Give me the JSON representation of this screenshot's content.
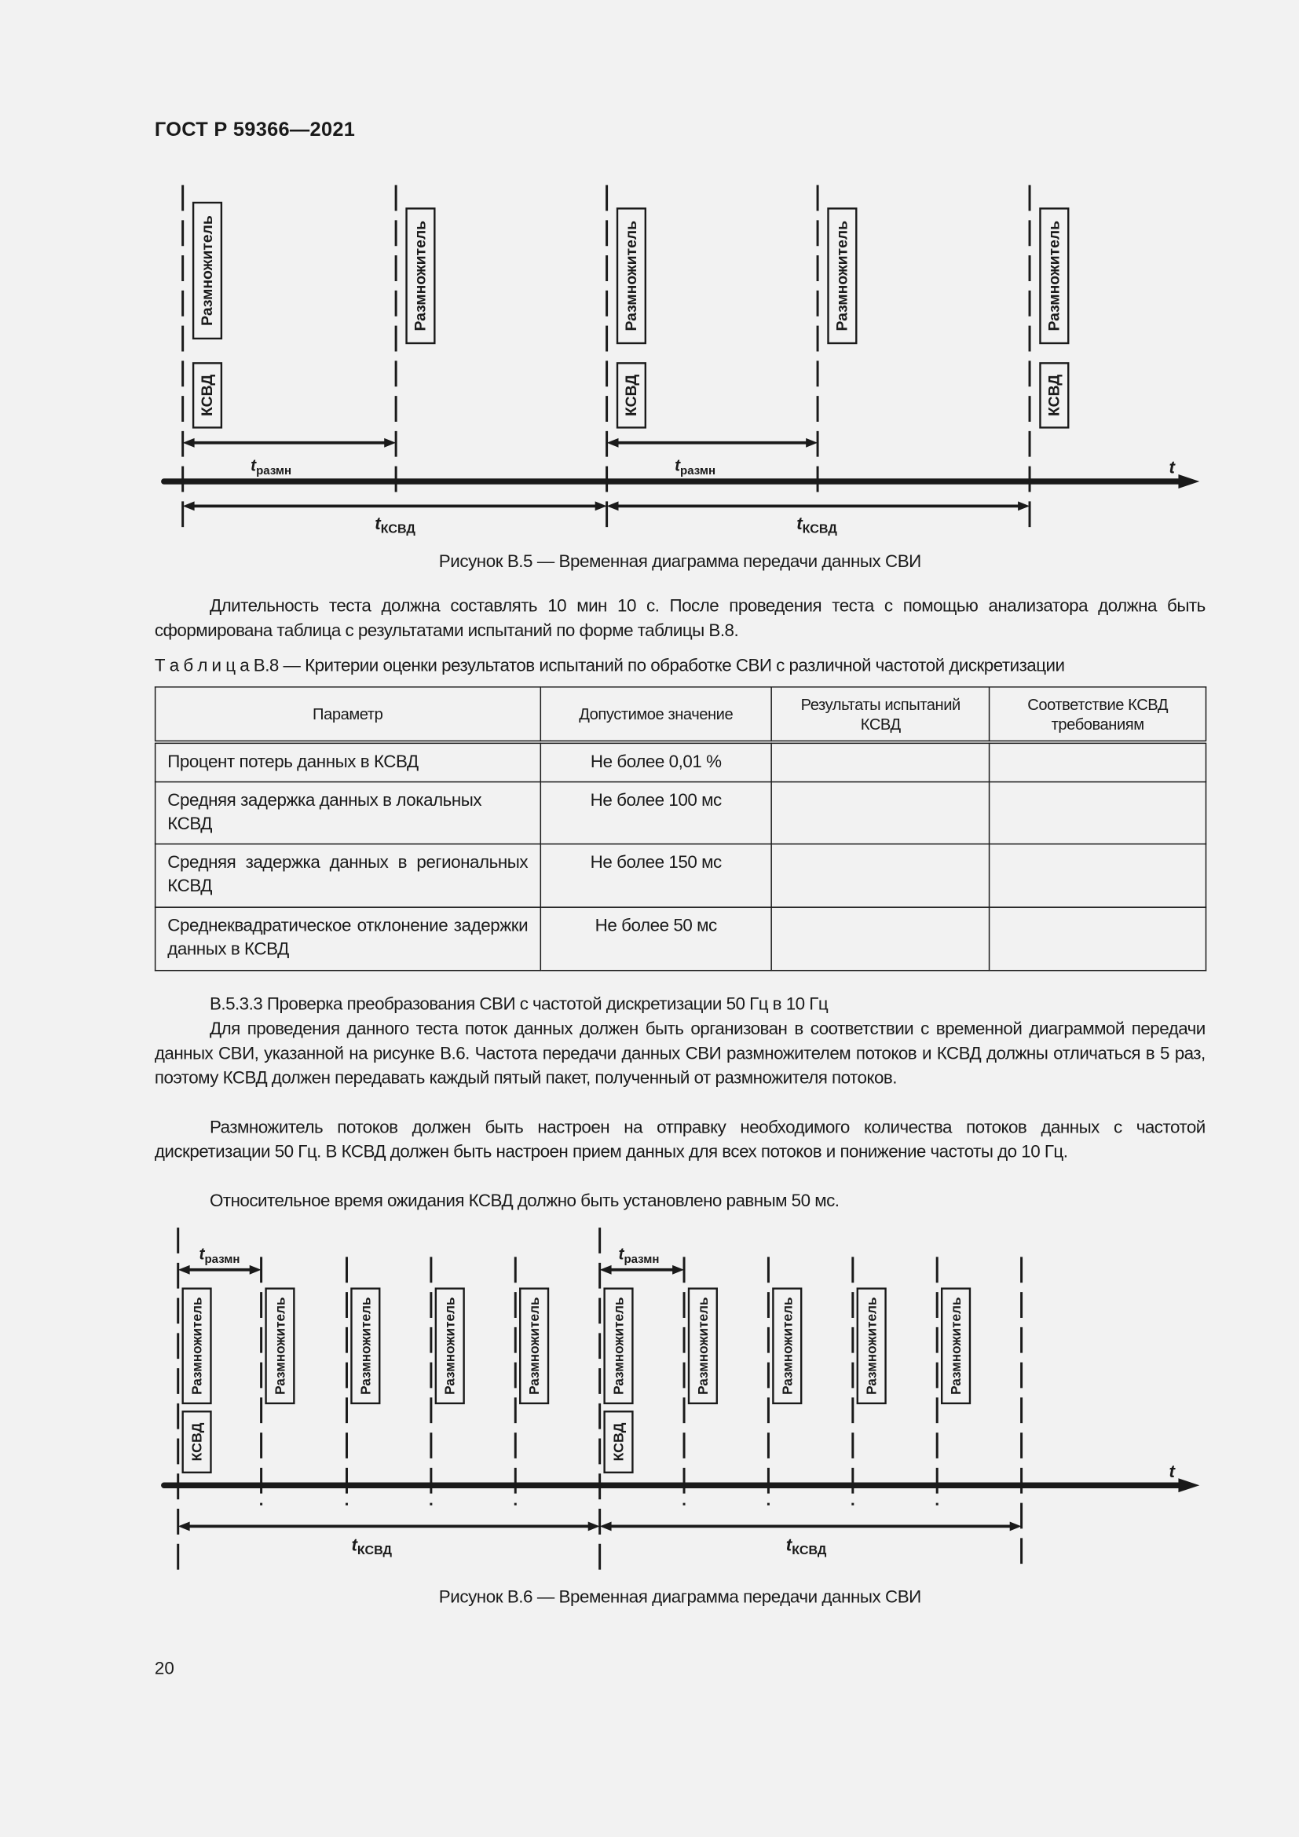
{
  "header": {
    "doc_id": "ГОСТ Р 59366—2021"
  },
  "figure_b5": {
    "caption": "Рисунок В.5 — Временная диаграмма передачи данных СВИ",
    "box_multiplier": "Размножитель",
    "box_ksvd": "КСВД",
    "t_symbol": "t",
    "sub_multiplier": "размн",
    "sub_ksvd": "КСВД",
    "axis_label": "t"
  },
  "paragraph_1": "Длительность теста должна составлять 10 мин 10 с. После проведения теста с помощью анализатора должна быть сформирована таблица с результатами испытаний по форме таблицы В.8.",
  "table": {
    "title_prefix": "Т а б л и ц а  В.8",
    "title_text": " — Критерии оценки результатов испытаний по обработке СВИ с различной частотой дискретизации",
    "headers": [
      "Параметр",
      "Допустимое значение",
      "Результаты испытаний КСВД",
      "Соответствие КСВД требованиям"
    ],
    "rows": [
      {
        "param": "Процент потерь данных в КСВД",
        "value": "Не более 0,01 %",
        "result": "",
        "compliance": ""
      },
      {
        "param": "Средняя задержка данных в локальных КСВД",
        "value": "Не более 100 мс",
        "result": "",
        "compliance": ""
      },
      {
        "param": "Средняя задержка данных в регио­нальных КСВД",
        "value": "Не более 150 мс",
        "result": "",
        "compliance": ""
      },
      {
        "param": "Среднеквадратическое отклонение за­держки данных в КСВД",
        "value": "Не более 50 мс",
        "result": "",
        "compliance": ""
      }
    ]
  },
  "section": {
    "heading": "В.5.3.3 Проверка преобразования СВИ с частотой дискретизации 50 Гц в 10 Гц",
    "p1": "Для проведения данного теста поток данных должен быть организован в соответствии с временной диаграммой передачи данных СВИ, указанной на рисунке В.6. Частота передачи данных СВИ размножителем потоков и КСВД должны отличаться в 5 раз, поэтому КСВД должен передавать каждый пятый пакет, полученный от размножителя потоков.",
    "p2": "Размножитель потоков должен быть настроен на отправку необходимого количества потоков данных с частотой дискретизации 50 Гц. В КСВД должен быть настроен прием данных для всех потоков и понижение частоты до 10 Гц.",
    "p3": "Относительное время ожидания КСВД должно быть установлено равным 50 мс."
  },
  "figure_b6": {
    "caption": "Рисунок В.6 — Временная диаграмма передачи данных СВИ",
    "box_multiplier": "Размножитель",
    "box_ksvd": "КСВД",
    "t_symbol": "t",
    "sub_multiplier": "размн",
    "sub_ksvd": "КСВД",
    "axis_label": "t"
  },
  "footer": {
    "page_number": "20"
  }
}
